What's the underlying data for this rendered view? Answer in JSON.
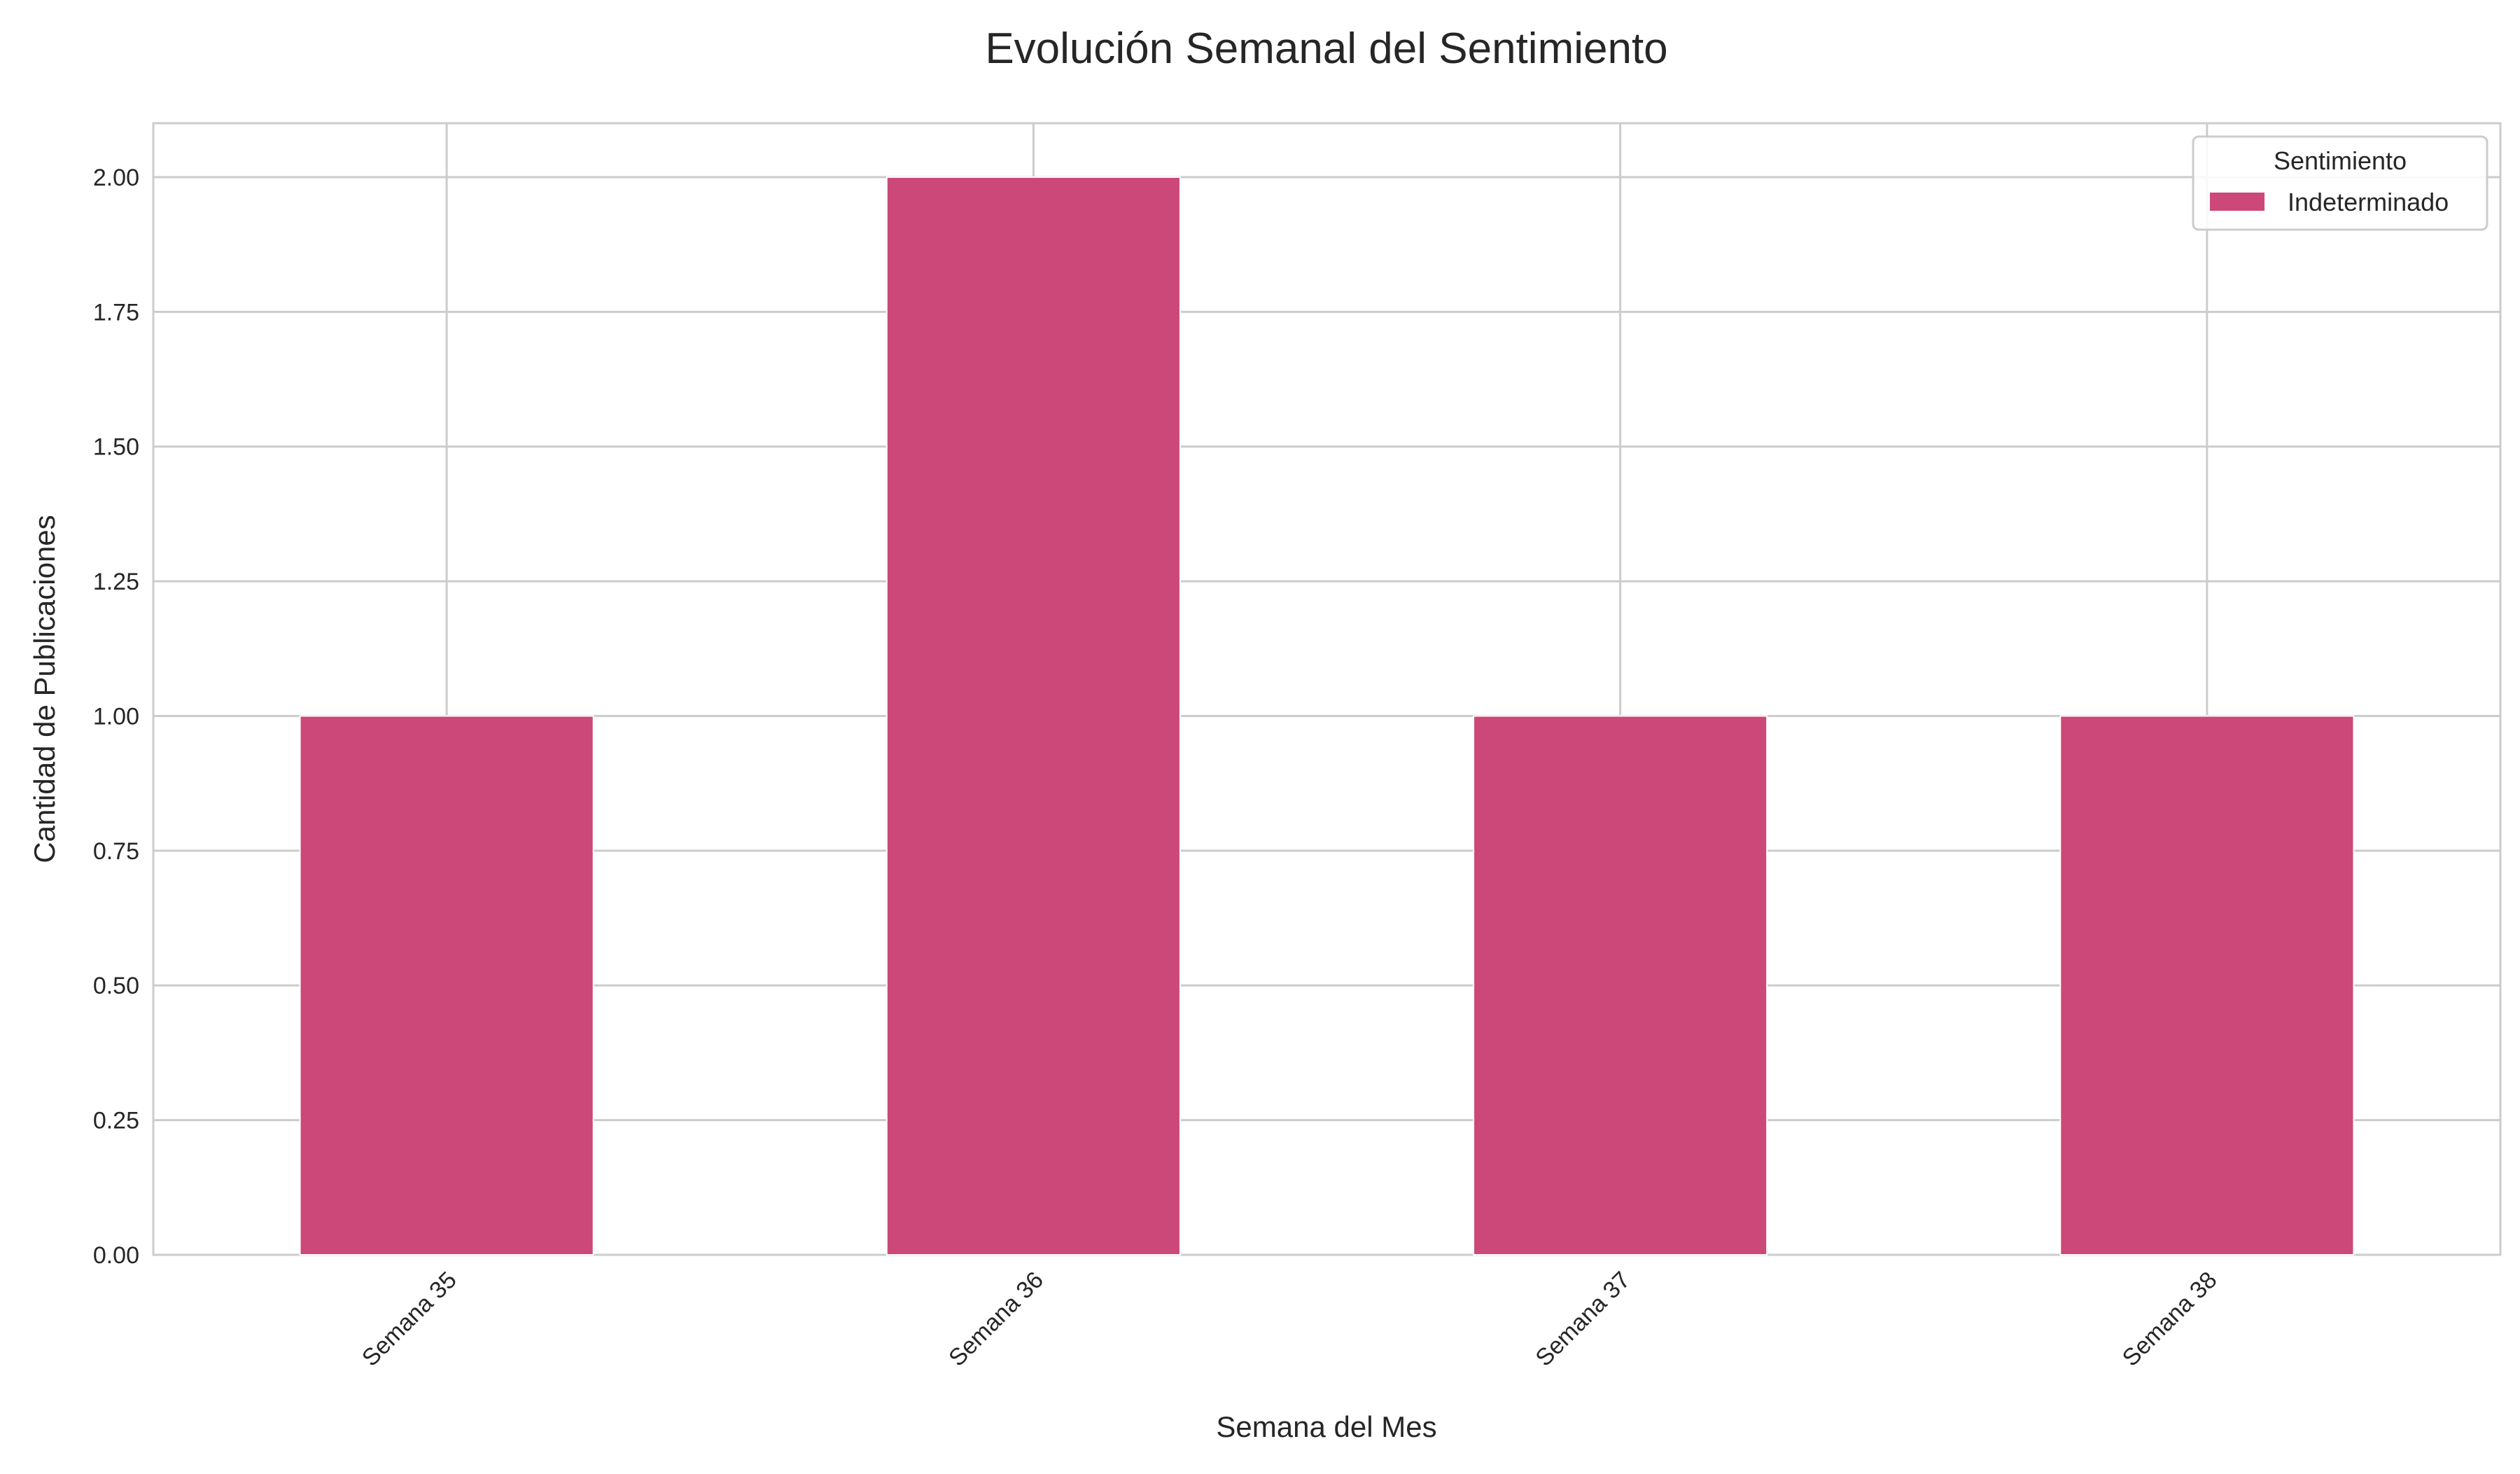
{
  "chart_data": {
    "type": "bar",
    "title": "Evolución Semanal del Sentimiento",
    "xlabel": "Semana del Mes",
    "ylabel": "Cantidad de Publicaciones",
    "categories": [
      "Semana 35",
      "Semana 36",
      "Semana 37",
      "Semana 38"
    ],
    "series": [
      {
        "name": "Indeterminado",
        "values": [
          1,
          2,
          1,
          1
        ],
        "color": "#cc4878"
      }
    ],
    "ylim": [
      0,
      2.1
    ],
    "yticks": [
      0,
      0.25,
      0.5,
      0.75,
      1.0,
      1.25,
      1.5,
      1.75,
      2.0
    ],
    "ytick_labels": [
      "0.00",
      "0.25",
      "0.50",
      "0.75",
      "1.00",
      "1.25",
      "1.50",
      "1.75",
      "2.00"
    ],
    "grid": true,
    "legend": {
      "title": "Sentimiento",
      "position": "top-right"
    },
    "colors": {
      "grid": "#cccccc",
      "axes": "#cccccc",
      "text": "#262626"
    }
  }
}
